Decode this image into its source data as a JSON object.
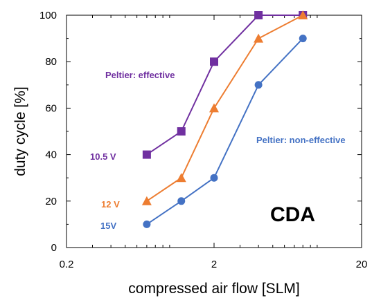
{
  "chart_data": {
    "type": "line",
    "title": "",
    "xlabel": "compressed air flow [SLM]",
    "ylabel": "duty cycle [%]",
    "xscale": "log",
    "xlim": [
      0.2,
      20
    ],
    "ylim": [
      0,
      100
    ],
    "x_ticks": [
      "0.2",
      "2",
      "20"
    ],
    "y_ticks": [
      "0",
      "20",
      "40",
      "60",
      "80",
      "100"
    ],
    "grid": false,
    "series": [
      {
        "name": "10.5 V",
        "color": "#7030a0",
        "marker": "square",
        "x": [
          0.7,
          1.2,
          2,
          4,
          8
        ],
        "y": [
          40,
          50,
          80,
          100,
          100
        ]
      },
      {
        "name": "12 V",
        "color": "#ed7d31",
        "marker": "triangle",
        "x": [
          0.7,
          1.2,
          2,
          4,
          8
        ],
        "y": [
          20,
          30,
          60,
          90,
          100
        ]
      },
      {
        "name": "15V",
        "color": "#4472c4",
        "marker": "circle",
        "x": [
          0.7,
          1.2,
          2,
          4,
          8
        ],
        "y": [
          10,
          20,
          30,
          70,
          90
        ]
      }
    ],
    "annotations": [
      {
        "text": "Peltier: effective",
        "color": "#7030a0"
      },
      {
        "text": "Peltier: non-effective",
        "color": "#4472c4"
      },
      {
        "text": "CDA",
        "color": "#000000"
      }
    ]
  }
}
